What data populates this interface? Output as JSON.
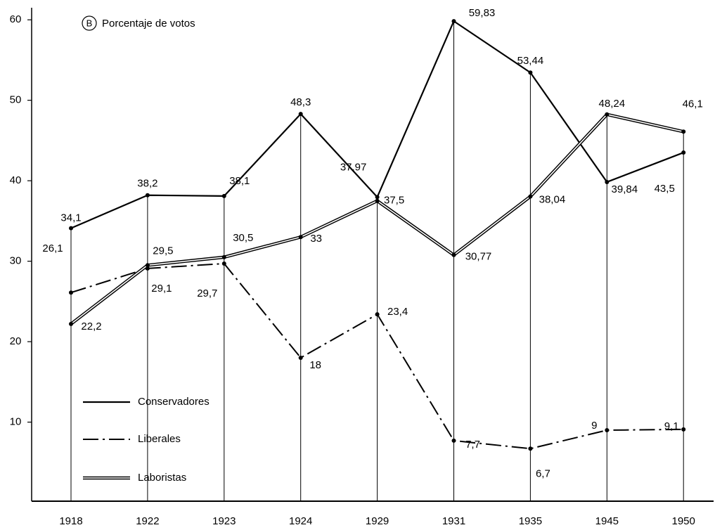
{
  "chart_data": {
    "type": "line",
    "annotation": "B",
    "subtitle": "Porcentaje de votos",
    "categories": [
      "1918",
      "1922",
      "1923",
      "1924",
      "1929",
      "1931",
      "1935",
      "1945",
      "1950"
    ],
    "series": [
      {
        "name": "Conservadores",
        "color": "#000000",
        "line_style": "solid",
        "values": [
          34.1,
          38.2,
          38.1,
          48.3,
          37.97,
          59.83,
          53.44,
          39.84,
          43.5
        ],
        "value_labels": [
          "34,1",
          "38,2",
          "38,1",
          "48,3",
          "37,97",
          "59,83",
          "53,44",
          "39,84",
          "43,5"
        ]
      },
      {
        "name": "Liberales",
        "color": "#000000",
        "line_style": "dashdot",
        "values": [
          26.1,
          29.1,
          29.7,
          18,
          23.4,
          7.7,
          6.7,
          9,
          9.1
        ],
        "value_labels": [
          "26,1",
          "29,1",
          "29,7",
          "18",
          "23,4",
          "7,7",
          "6,7",
          "9",
          "9,1"
        ]
      },
      {
        "name": "Laboristas",
        "color": "#000000",
        "line_style": "double",
        "values": [
          22.2,
          29.5,
          30.5,
          33,
          37.5,
          30.77,
          38.04,
          48.24,
          46.1
        ],
        "value_labels": [
          "22,2",
          "29,5",
          "30,5",
          "33",
          "37,5",
          "30,77",
          "38,04",
          "48,24",
          "46,1"
        ]
      }
    ],
    "ylim": [
      0,
      61.5
    ],
    "yticks": [
      10,
      20,
      30,
      40,
      50,
      60
    ],
    "legend": "lower left",
    "grid": false
  }
}
